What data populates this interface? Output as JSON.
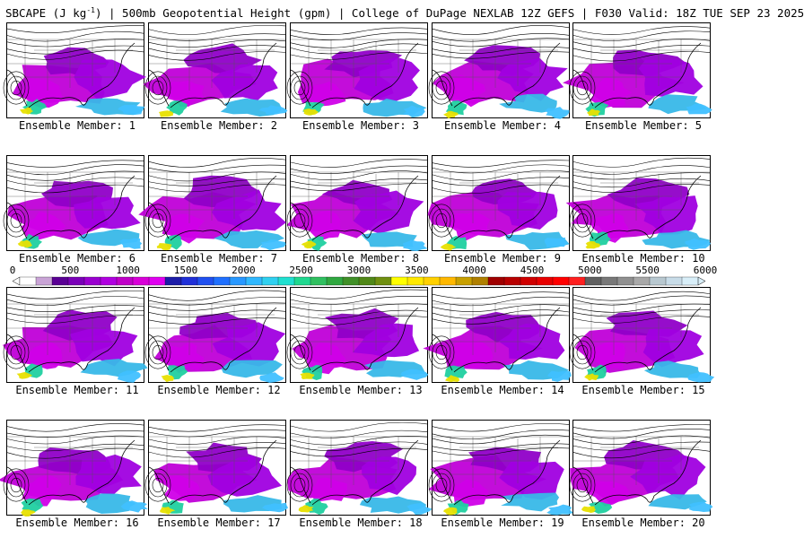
{
  "title": {
    "field": "SBCAPE (J kg",
    "field_unit_sup": "-1",
    "rest": ") | 500mb Geopotential Height (gpm) | College of DuPage NEXLAB 12Z GEFS | F030 Valid: 18Z TUE SEP 23 2025"
  },
  "panels": [
    {
      "label": "Ensemble Member: 1"
    },
    {
      "label": "Ensemble Member: 2"
    },
    {
      "label": "Ensemble Member: 3"
    },
    {
      "label": "Ensemble Member: 4"
    },
    {
      "label": "Ensemble Member: 5"
    },
    {
      "label": "Ensemble Member: 6"
    },
    {
      "label": "Ensemble Member: 7"
    },
    {
      "label": "Ensemble Member: 8"
    },
    {
      "label": "Ensemble Member: 9"
    },
    {
      "label": "Ensemble Member: 10"
    },
    {
      "label": "Ensemble Member: 11"
    },
    {
      "label": "Ensemble Member: 12"
    },
    {
      "label": "Ensemble Member: 13"
    },
    {
      "label": "Ensemble Member: 14"
    },
    {
      "label": "Ensemble Member: 15"
    },
    {
      "label": "Ensemble Member: 16"
    },
    {
      "label": "Ensemble Member: 17"
    },
    {
      "label": "Ensemble Member: 18"
    },
    {
      "label": "Ensemble Member: 19"
    },
    {
      "label": "Ensemble Member: 20"
    }
  ],
  "colorbar": {
    "ticks": [
      "0",
      "500",
      "1000",
      "1500",
      "2000",
      "2500",
      "3000",
      "3500",
      "4000",
      "4500",
      "5000",
      "5500",
      "6000"
    ],
    "min": 0,
    "max": 6000,
    "colors": [
      "#ffffff",
      "#c9a4d6",
      "#5a0094",
      "#7a00b8",
      "#9a00d0",
      "#b000e0",
      "#c000c8",
      "#d800d8",
      "#e000f0",
      "#1c1ca8",
      "#2030d8",
      "#2050f0",
      "#2070ff",
      "#2898ff",
      "#30b8ff",
      "#30d0f0",
      "#20e0d0",
      "#20d890",
      "#30c060",
      "#30a840",
      "#409028",
      "#508818",
      "#709010",
      "#ffff00",
      "#ffe800",
      "#ffd000",
      "#ffb800",
      "#c8a000",
      "#b08000",
      "#a00000",
      "#b80000",
      "#d00000",
      "#e80000",
      "#ff0000",
      "#ff2020",
      "#606060",
      "#787878",
      "#909090",
      "#a8a8a8",
      "#b8c8d0",
      "#c8dce8",
      "#d8eef8"
    ]
  }
}
